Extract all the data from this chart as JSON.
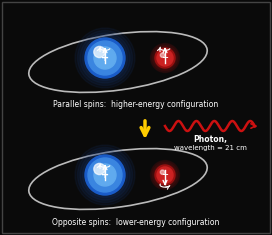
{
  "background_color": "#0a0a0a",
  "border_color": "#444444",
  "fig_width": 2.72,
  "fig_height": 2.35,
  "dpi": 100,
  "top_label": "Parallel spins:  higher-energy configuration",
  "bottom_label": "Opposite spins:  lower-energy configuration",
  "photon_label_line1": "Photon,",
  "photon_label_line2": "wavelength = 21 cm",
  "nucleus_color_center": "#5aabee",
  "nucleus_color_edge": "#1a4a99",
  "electron_color_center": "#ee3333",
  "electron_color_edge": "#881111",
  "arrow_color": "#ffcc00",
  "wave_color": "#cc1111",
  "text_color": "#ffffff",
  "photon_text_color": "#ffffff",
  "orbit_color": "#cccccc",
  "spin_arrow_color": "#ffffff",
  "plus_color": "#ffffff",
  "minus_color": "#ffffff"
}
